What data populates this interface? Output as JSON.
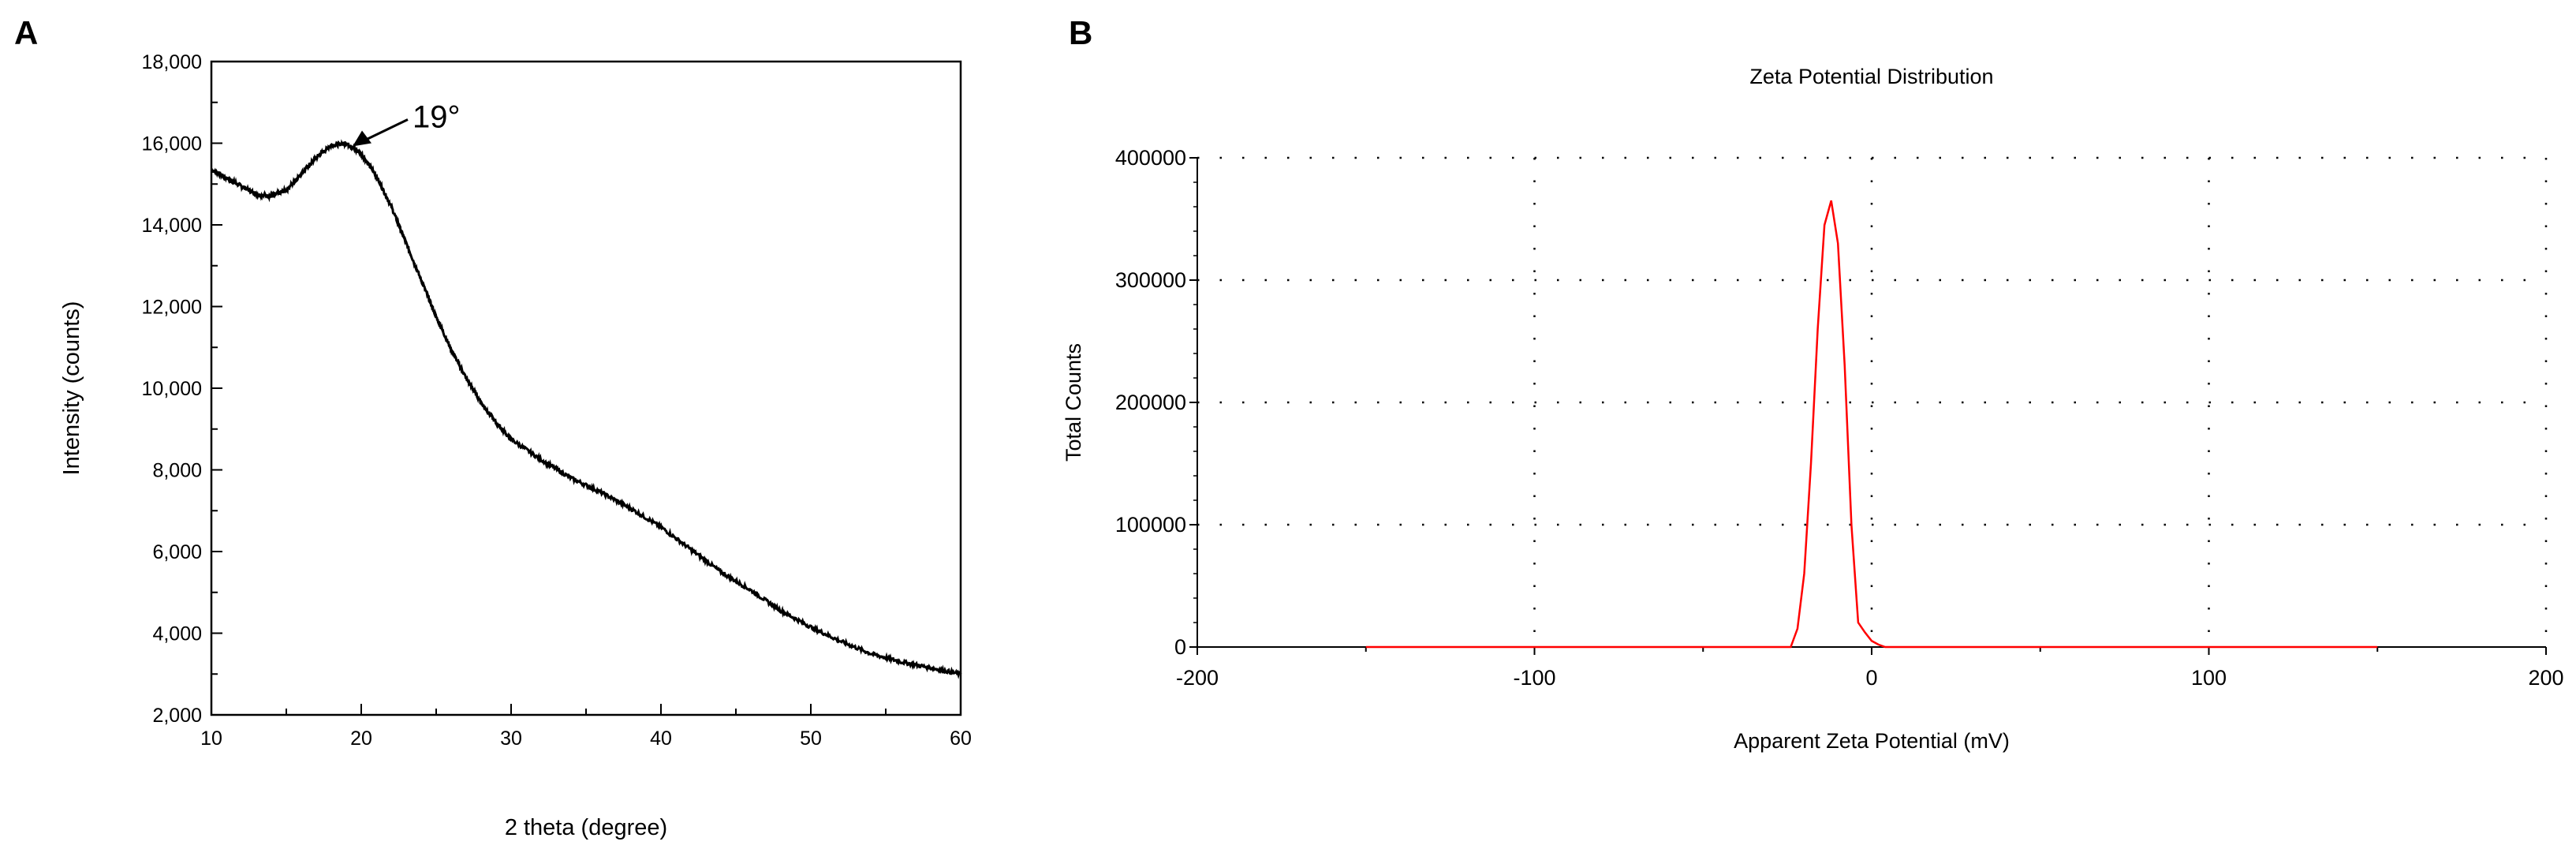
{
  "panels": {
    "a_letter": "A",
    "b_letter": "B"
  },
  "chart_data": [
    {
      "type": "line",
      "panel": "A",
      "title": "",
      "xlabel": "2 theta (degree)",
      "ylabel": "Intensity (counts)",
      "xlim": [
        10,
        60
      ],
      "ylim": [
        2000,
        18000
      ],
      "x_ticks": [
        10,
        20,
        30,
        40,
        50,
        60
      ],
      "x_tick_labels": [
        "10",
        "20",
        "30",
        "40",
        "50",
        "60"
      ],
      "y_ticks": [
        2000,
        4000,
        6000,
        8000,
        10000,
        12000,
        14000,
        16000,
        18000
      ],
      "y_tick_labels": [
        "2,000",
        "4,000",
        "6,000",
        "8,000",
        "10,000",
        "12,000",
        "14,000",
        "16,000",
        "18,000"
      ],
      "grid": false,
      "line_color": "#000000",
      "annotation": {
        "text": "19°",
        "x": 19,
        "y": 16000
      },
      "series": [
        {
          "x": [
            10,
            11,
            12,
            13,
            14,
            15,
            16,
            17,
            18,
            19,
            20,
            21,
            22,
            23,
            24,
            25,
            26,
            27,
            28,
            29,
            30,
            32,
            34,
            36,
            38,
            40,
            42,
            44,
            46,
            48,
            50,
            52,
            54,
            56,
            58,
            60
          ],
          "y": [
            15350,
            15150,
            14950,
            14750,
            14700,
            14850,
            15250,
            15650,
            15950,
            16000,
            15750,
            15200,
            14450,
            13550,
            12650,
            11750,
            10950,
            10250,
            9650,
            9150,
            8750,
            8250,
            7800,
            7450,
            7050,
            6600,
            6050,
            5500,
            5050,
            4550,
            4150,
            3800,
            3500,
            3300,
            3150,
            3000
          ]
        }
      ]
    },
    {
      "type": "line",
      "panel": "B",
      "title": "Zeta Potential Distribution",
      "xlabel": "Apparent Zeta Potential (mV)",
      "ylabel": "Total Counts",
      "xlim": [
        -200,
        200
      ],
      "ylim": [
        0,
        400000
      ],
      "x_ticks": [
        -200,
        -100,
        0,
        100,
        200
      ],
      "x_tick_labels": [
        "-200",
        "-100",
        "0",
        "100",
        "200"
      ],
      "y_ticks": [
        0,
        100000,
        200000,
        300000,
        400000
      ],
      "y_tick_labels": [
        "0",
        "100000",
        "200000",
        "300000",
        "400000"
      ],
      "grid": true,
      "line_color": "#ff0000",
      "series": [
        {
          "x": [
            -150,
            -24,
            -22,
            -20,
            -18,
            -16,
            -14,
            -12,
            -10,
            -8,
            -6,
            -4,
            -2,
            0,
            2,
            4,
            150
          ],
          "y": [
            0,
            0,
            15000,
            60000,
            150000,
            260000,
            345000,
            365000,
            330000,
            230000,
            100000,
            20000,
            12000,
            5000,
            2000,
            0,
            0
          ]
        }
      ]
    }
  ]
}
